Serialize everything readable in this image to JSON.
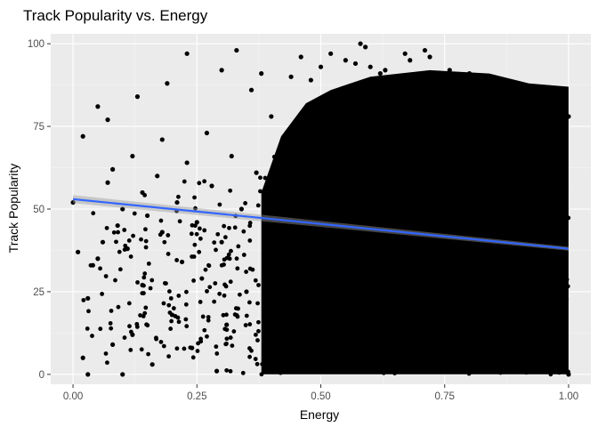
{
  "chart_data": {
    "type": "scatter",
    "title": "Track Popularity vs. Energy",
    "xlabel": "Energy",
    "ylabel": "Track Popularity",
    "xlim": [
      -0.045,
      1.045
    ],
    "ylim": [
      -3,
      103
    ],
    "x_ticks": [
      0.0,
      0.25,
      0.5,
      0.75,
      1.0
    ],
    "x_tick_labels": [
      "0.00",
      "0.25",
      "0.50",
      "0.75",
      "1.00"
    ],
    "y_ticks": [
      0,
      25,
      50,
      75,
      100
    ],
    "y_tick_labels": [
      "0",
      "25",
      "50",
      "75",
      "100"
    ],
    "grid": true,
    "legend": "none",
    "colors": {
      "panel_background": "#ebebeb",
      "grid_major": "#ffffff",
      "grid_minor": "#f5f5f5",
      "points": "#000000",
      "trend_line": "#3366ff",
      "confidence_band": "#999999"
    },
    "points": [
      [
        0.0,
        52
      ],
      [
        0.02,
        72
      ],
      [
        0.01,
        37
      ],
      [
        0.03,
        23
      ],
      [
        0.02,
        5
      ],
      [
        0.03,
        0
      ],
      [
        0.04,
        33
      ],
      [
        0.05,
        35
      ],
      [
        0.05,
        81
      ],
      [
        0.06,
        40
      ],
      [
        0.07,
        77
      ],
      [
        0.07,
        58
      ],
      [
        0.08,
        62
      ],
      [
        0.08,
        9
      ],
      [
        0.09,
        45
      ],
      [
        0.1,
        50
      ],
      [
        0.1,
        0
      ],
      [
        0.11,
        38
      ],
      [
        0.12,
        66
      ],
      [
        0.12,
        12
      ],
      [
        0.13,
        84
      ],
      [
        0.14,
        55
      ],
      [
        0.14,
        27
      ],
      [
        0.15,
        48
      ],
      [
        0.16,
        3
      ],
      [
        0.17,
        60
      ],
      [
        0.18,
        43
      ],
      [
        0.18,
        71
      ],
      [
        0.19,
        88
      ],
      [
        0.2,
        18
      ],
      [
        0.21,
        52
      ],
      [
        0.22,
        34
      ],
      [
        0.23,
        97
      ],
      [
        0.23,
        64
      ],
      [
        0.24,
        8
      ],
      [
        0.25,
        46
      ],
      [
        0.26,
        29
      ],
      [
        0.27,
        73
      ],
      [
        0.28,
        57
      ],
      [
        0.29,
        1
      ],
      [
        0.3,
        92
      ],
      [
        0.3,
        40
      ],
      [
        0.31,
        15
      ],
      [
        0.32,
        66
      ],
      [
        0.33,
        98
      ],
      [
        0.34,
        50
      ],
      [
        0.35,
        25
      ],
      [
        0.36,
        86
      ],
      [
        0.37,
        61
      ],
      [
        0.38,
        91
      ],
      [
        0.39,
        35
      ],
      [
        0.4,
        78
      ],
      [
        0.41,
        7
      ],
      [
        0.42,
        55
      ],
      [
        0.43,
        44
      ],
      [
        0.44,
        90
      ],
      [
        0.45,
        68
      ],
      [
        0.46,
        96
      ],
      [
        0.48,
        89
      ],
      [
        0.5,
        93
      ],
      [
        0.52,
        97
      ],
      [
        0.55,
        95
      ],
      [
        0.57,
        94
      ],
      [
        0.58,
        100
      ],
      [
        0.59,
        99
      ],
      [
        0.6,
        93
      ],
      [
        0.62,
        91
      ],
      [
        0.63,
        92
      ],
      [
        0.65,
        90
      ],
      [
        0.67,
        97
      ],
      [
        0.68,
        95
      ],
      [
        0.71,
        98
      ],
      [
        0.72,
        96
      ],
      [
        0.74,
        89
      ],
      [
        0.76,
        92
      ],
      [
        0.78,
        88
      ],
      [
        0.8,
        91
      ],
      [
        0.82,
        85
      ],
      [
        0.84,
        90
      ],
      [
        0.86,
        86
      ],
      [
        0.88,
        82
      ],
      [
        0.9,
        84
      ],
      [
        0.92,
        81
      ],
      [
        0.94,
        80
      ],
      [
        0.96,
        78
      ],
      [
        0.98,
        75
      ],
      [
        1.0,
        78
      ],
      [
        1.0,
        0
      ],
      [
        0.99,
        60
      ],
      [
        0.97,
        30
      ]
    ],
    "dense_band_note": "",
    "trend": {
      "x": [
        0.0,
        1.0
      ],
      "y": [
        53,
        38
      ]
    }
  }
}
